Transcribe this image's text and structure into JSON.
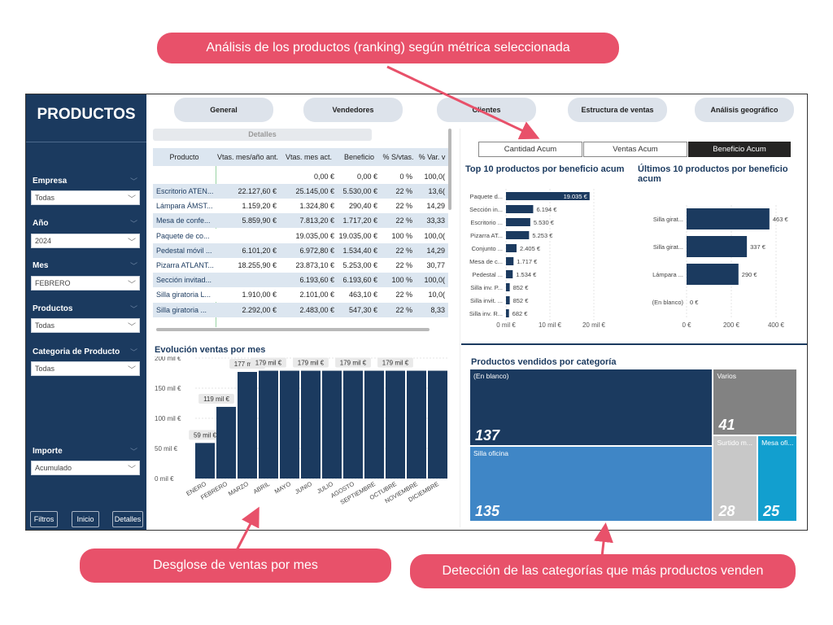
{
  "callouts": {
    "top": "Análisis de los productos (ranking) según métrica seleccionada",
    "left": "Desglose de ventas por mes",
    "right": "Detección de las categorías que más productos venden"
  },
  "sidebar": {
    "title": "PRODUCTOS",
    "filters": [
      {
        "label": "Empresa",
        "value": "Todas"
      },
      {
        "label": "Año",
        "value": "2024"
      },
      {
        "label": "Mes",
        "value": "FEBRERO"
      },
      {
        "label": "Productos",
        "value": "Todas"
      },
      {
        "label": "Categoria de Producto",
        "value": "Todas"
      },
      {
        "label": "Importe",
        "value": "Acumulado"
      }
    ],
    "buttons": {
      "filtros": "Filtros",
      "inicio": "Inicio",
      "detalles": "Detalles"
    }
  },
  "nav": {
    "tabs": [
      "General",
      "Vendedores",
      "Clientes",
      "Estructura de ventas",
      "Análisis geográfico"
    ],
    "detalles": "Detalles"
  },
  "table": {
    "headers": [
      "Producto",
      "Vtas. mes/año ant.",
      "Vtas. mes act.",
      "Beneficio",
      "% S/vtas.",
      "% Var. v"
    ],
    "total": [
      "",
      "",
      "0,00 €",
      "0,00 €",
      "0 %",
      "100,0("
    ],
    "rows": [
      [
        "Escritorio ATEN...",
        "22.127,60 €",
        "25.145,00 €",
        "5.530,00 €",
        "22 %",
        "13,6("
      ],
      [
        "Lámpara ÁMST...",
        "1.159,20 €",
        "1.324,80 €",
        "290,40 €",
        "22 %",
        "14,29"
      ],
      [
        "Mesa de confe...",
        "5.859,90 €",
        "7.813,20 €",
        "1.717,20 €",
        "22 %",
        "33,33"
      ],
      [
        "Paquete de co...",
        "",
        "19.035,00 €",
        "19.035,00 €",
        "100 %",
        "100,0("
      ],
      [
        "Pedestal móvil ...",
        "6.101,20 €",
        "6.972,80 €",
        "1.534,40 €",
        "22 %",
        "14,29"
      ],
      [
        "Pizarra ATLANT...",
        "18.255,90 €",
        "23.873,10 €",
        "5.253,00 €",
        "22 %",
        "30,77"
      ],
      [
        "Sección invitad...",
        "",
        "6.193,60 €",
        "6.193,60 €",
        "100 %",
        "100,0("
      ],
      [
        "Silla giratoria L...",
        "1.910,00 €",
        "2.101,00 €",
        "463,10 €",
        "22 %",
        "10,0("
      ],
      [
        "Silla giratoria ...",
        "2.292,00 €",
        "2.483,00 €",
        "547,30 €",
        "22 %",
        "8,33"
      ]
    ]
  },
  "metric_tabs": {
    "options": [
      "Cantidad Acum",
      "Ventas Acum",
      "Beneficio Acum"
    ],
    "selected": "Beneficio Acum"
  },
  "chart_data": [
    {
      "type": "bar",
      "orientation": "horizontal",
      "title": "Top 10 productos por beneficio acum",
      "categories": [
        "Paquete d...",
        "Sección in...",
        "Escritorio ...",
        "Pizarra AT...",
        "Conjunto ...",
        "Mesa de c...",
        "Pedestal ...",
        "Silla inv. P...",
        "Silla invit. ...",
        "Silla inv. R..."
      ],
      "values": [
        19035,
        6194,
        5530,
        5253,
        2405,
        1717,
        1534,
        852,
        852,
        682
      ],
      "data_labels": [
        "19.035 €",
        "6.194 €",
        "5.530 €",
        "5.253 €",
        "2.405 €",
        "1.717 €",
        "1.534 €",
        "852 €",
        "852 €",
        "682 €"
      ],
      "xticks": [
        "0 mil €",
        "10 mil €",
        "20 mil €"
      ],
      "xlim": [
        0,
        20000
      ],
      "color": "#1b3a5f"
    },
    {
      "type": "bar",
      "orientation": "horizontal",
      "title": "Últimos 10 productos por beneficio acum",
      "categories": [
        "Silla girat...",
        "Silla girat...",
        "Lámpara ...",
        "(En blanco)"
      ],
      "values": [
        463,
        337,
        290,
        0
      ],
      "data_labels": [
        "463 €",
        "337 €",
        "290 €",
        "0 €"
      ],
      "xticks": [
        "0 €",
        "200 €",
        "400 €"
      ],
      "xlim": [
        0,
        500
      ],
      "color": "#1b3a5f"
    },
    {
      "type": "bar",
      "title": "Evolución ventas por mes",
      "categories": [
        "ENERO",
        "FEBRERO",
        "MARZO",
        "ABRIL",
        "MAYO",
        "JUNIO",
        "JULIO",
        "AGOSTO",
        "SEPTIEMBRE",
        "OCTUBRE",
        "NOVIEMBRE",
        "DICIEMBRE"
      ],
      "values": [
        59,
        119,
        177,
        179,
        179,
        179,
        179,
        179,
        179,
        179,
        179,
        179
      ],
      "data_labels": [
        "59 mil €",
        "119 mil €",
        "177 mil €",
        "179 mil €",
        "",
        "179 mil €",
        "",
        "179 mil €",
        "",
        "179 mil €",
        "",
        ""
      ],
      "yticks": [
        "0 mil €",
        "50 mil €",
        "100 mil €",
        "150 mil €",
        "200 mil €"
      ],
      "ylim": [
        0,
        200
      ],
      "color": "#1b3a5f"
    },
    {
      "type": "treemap",
      "title": "Productos vendidos por categoría",
      "items": [
        {
          "name": "(En blanco)",
          "value": 137,
          "color": "#1b3a5f"
        },
        {
          "name": "Silla oficina",
          "value": 135,
          "color": "#3f86c6"
        },
        {
          "name": "Varios",
          "value": 41,
          "color": "#828282"
        },
        {
          "name": "Surtido m...",
          "value": 28,
          "color": "#c8c8c8"
        },
        {
          "name": "Mesa ofi...",
          "value": 25,
          "color": "#129fcf"
        }
      ]
    }
  ]
}
